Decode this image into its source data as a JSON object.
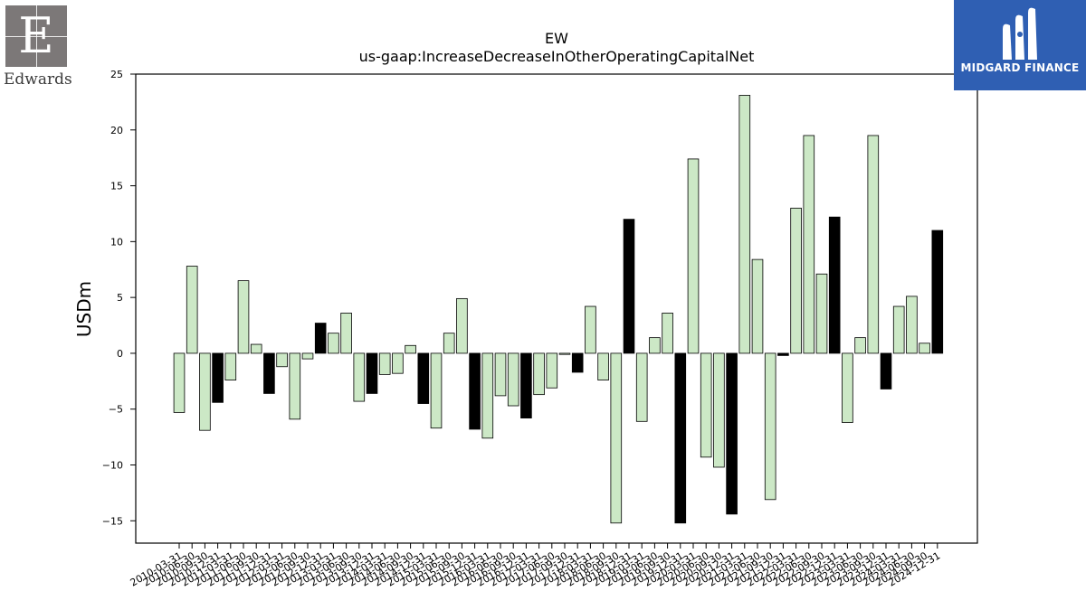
{
  "logos": {
    "left": {
      "letter": "E",
      "wordmark": "Edwards"
    },
    "right": {
      "name": "MIDGARD FINANCE"
    }
  },
  "chart_data": {
    "type": "bar",
    "title": "EW",
    "subtitle": "us-gaap:IncreaseDecreaseInOtherOperatingCapitalNet",
    "xlabel": "",
    "ylabel": "USDm",
    "ylim": [
      -17,
      25
    ],
    "yticks": [
      -15,
      -10,
      -5,
      0,
      5,
      10,
      15,
      20,
      25
    ],
    "grid": false,
    "colors": {
      "default": "#cce8c6",
      "q4": "#000000",
      "edge": "#000000"
    },
    "categories": [
      "2010-03-31",
      "2010-06-30",
      "2010-09-30",
      "2010-12-31",
      "2011-03-31",
      "2011-06-30",
      "2011-09-30",
      "2011-12-31",
      "2012-03-31",
      "2012-06-30",
      "2012-09-30",
      "2012-12-31",
      "2013-03-31",
      "2013-06-30",
      "2013-09-30",
      "2013-12-31",
      "2014-03-31",
      "2014-06-30",
      "2014-09-30",
      "2014-12-31",
      "2015-03-31",
      "2015-06-30",
      "2015-09-30",
      "2015-12-31",
      "2016-03-31",
      "2016-06-30",
      "2016-09-30",
      "2016-12-31",
      "2017-03-31",
      "2017-06-30",
      "2017-09-30",
      "2017-12-31",
      "2018-03-31",
      "2018-06-30",
      "2018-09-30",
      "2018-12-31",
      "2019-03-31",
      "2019-06-30",
      "2019-09-30",
      "2019-12-31",
      "2020-03-31",
      "2020-06-30",
      "2020-09-30",
      "2020-12-31",
      "2021-03-31",
      "2021-06-30",
      "2021-09-30",
      "2021-12-31",
      "2022-03-31",
      "2022-06-30",
      "2022-09-30",
      "2022-12-31",
      "2023-03-31",
      "2023-06-30",
      "2023-09-30",
      "2023-12-31",
      "2024-03-31",
      "2024-06-30",
      "2024-09-30",
      "2024-12-31"
    ],
    "values": [
      -5.3,
      7.8,
      -6.9,
      -4.4,
      -2.4,
      6.5,
      0.8,
      -3.6,
      -1.2,
      -5.9,
      -0.5,
      2.7,
      1.8,
      3.6,
      -4.3,
      -3.6,
      -1.9,
      -1.8,
      0.7,
      -4.5,
      -6.7,
      1.8,
      4.9,
      -6.8,
      -7.6,
      -3.8,
      -4.7,
      -5.8,
      -3.7,
      -3.1,
      -0.1,
      -1.7,
      4.2,
      -2.4,
      -15.2,
      12.0,
      -6.1,
      1.4,
      3.6,
      -15.2,
      17.4,
      -9.3,
      -10.2,
      -14.4,
      23.1,
      8.4,
      -13.1,
      -0.2,
      13.0,
      19.5,
      7.1,
      12.2,
      -6.2,
      1.4,
      19.5,
      -3.2,
      4.2,
      5.1,
      0.9,
      11.0
    ]
  }
}
